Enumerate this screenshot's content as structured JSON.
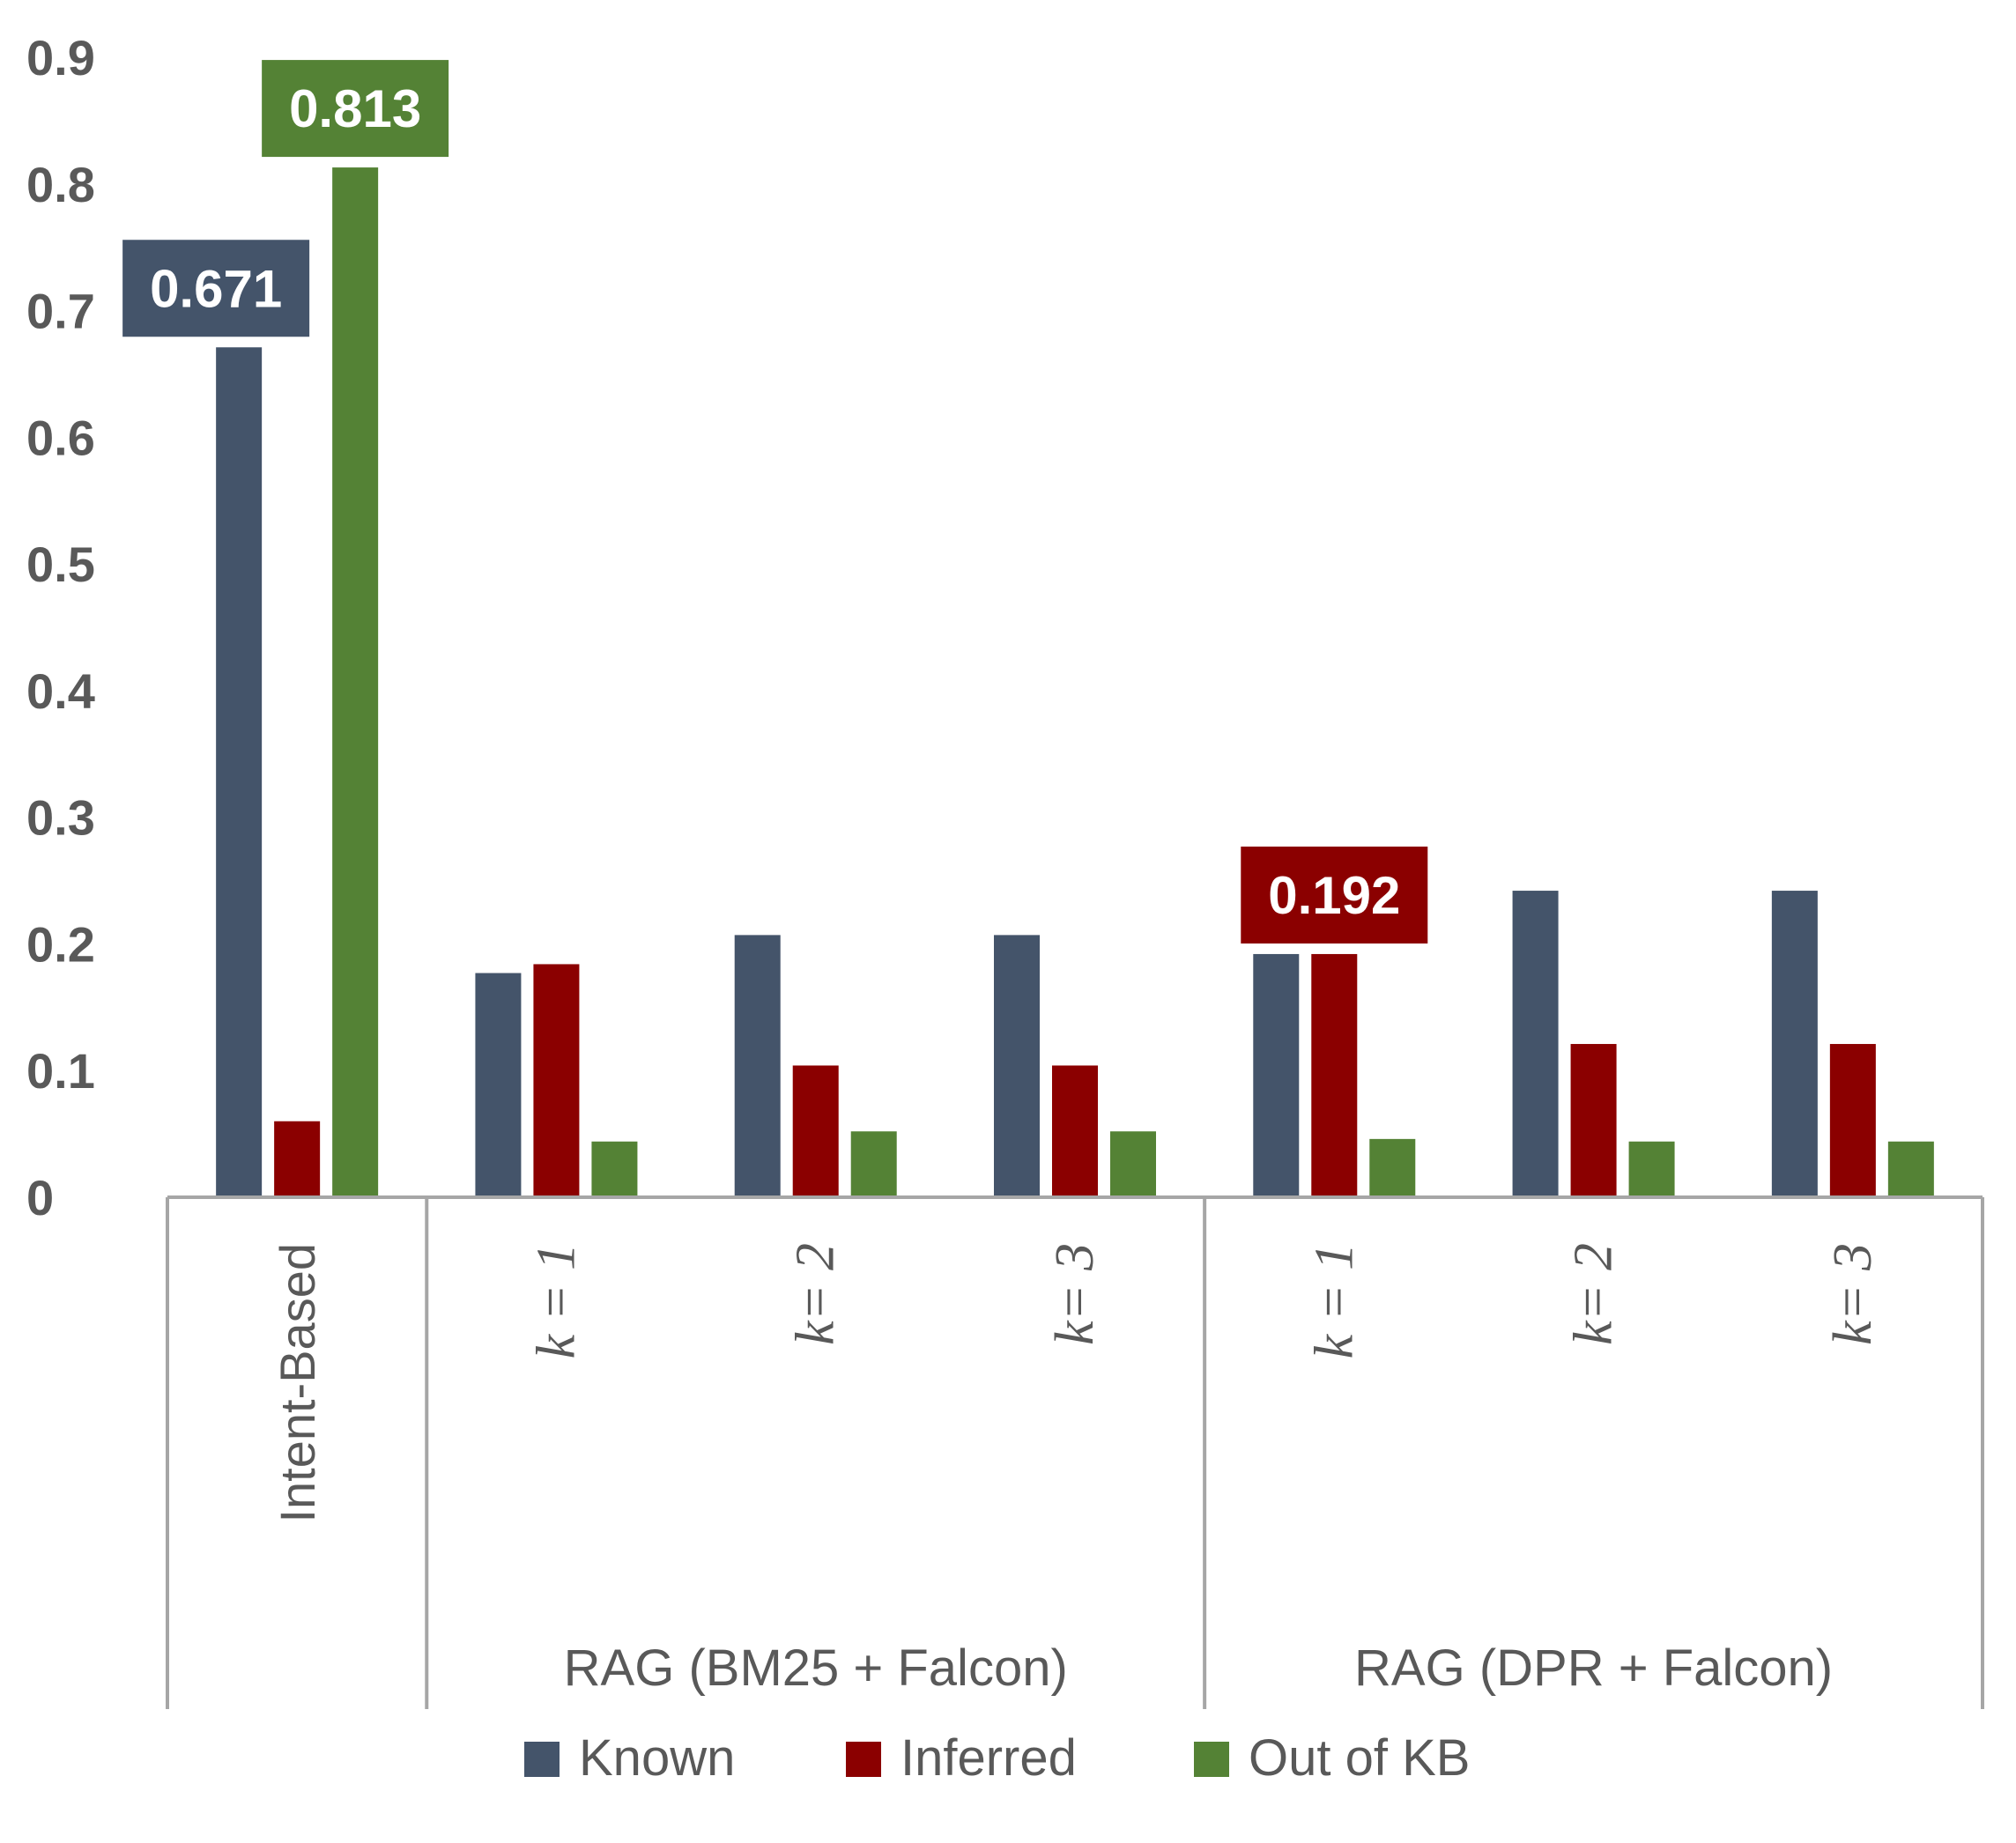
{
  "chart_data": {
    "type": "bar",
    "title": "",
    "xlabel": "",
    "ylabel": "",
    "ylim": [
      0,
      0.9
    ],
    "yticks": [
      "0",
      "0.1",
      "0.2",
      "0.3",
      "0.4",
      "0.5",
      "0.6",
      "0.7",
      "0.8",
      "0.9"
    ],
    "grid": false,
    "legend_position": "bottom",
    "categories": [
      "Intent-Based",
      "k = 1",
      "k= 2",
      "k= 3",
      "k = 1",
      "k= 2",
      "k= 3"
    ],
    "groups": [
      {
        "label": "",
        "categories": [
          0
        ]
      },
      {
        "label": "RAG (BM25 + Falcon)",
        "categories": [
          1,
          2,
          3
        ]
      },
      {
        "label": "RAG (DPR  + Falcon)",
        "categories": [
          4,
          5,
          6
        ]
      }
    ],
    "series": [
      {
        "name": "Known",
        "color": "#44546a",
        "values": [
          0.671,
          0.177,
          0.207,
          0.207,
          0.192,
          0.242,
          0.242
        ]
      },
      {
        "name": "Inferred",
        "color": "#8b0000",
        "values": [
          0.06,
          0.184,
          0.104,
          0.104,
          0.192,
          0.121,
          0.121
        ]
      },
      {
        "name": "Out of KB",
        "color": "#548235",
        "values": [
          0.813,
          0.044,
          0.052,
          0.052,
          0.046,
          0.044,
          0.044
        ]
      }
    ],
    "data_labels": [
      {
        "series": 0,
        "category": 0,
        "text": "0.671"
      },
      {
        "series": 2,
        "category": 0,
        "text": "0.813"
      },
      {
        "series": 1,
        "category": 4,
        "text": "0.192"
      }
    ]
  }
}
